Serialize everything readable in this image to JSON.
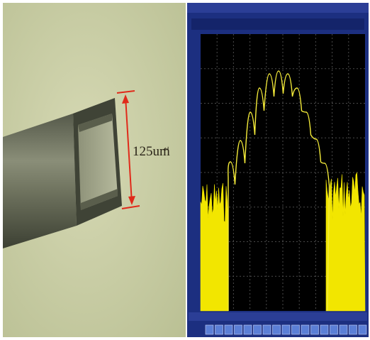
{
  "photo": {
    "label": "125um",
    "mark": "↵"
  }
}
